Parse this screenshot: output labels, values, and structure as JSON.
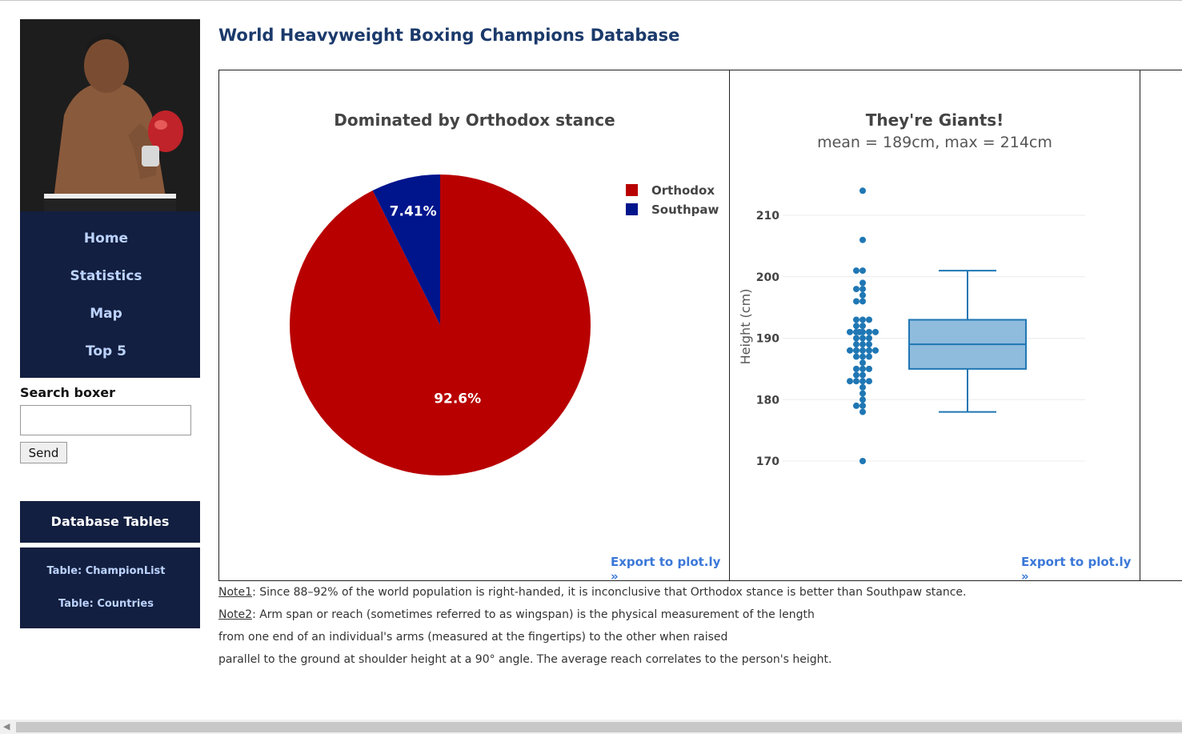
{
  "page": {
    "title": "World Heavyweight Boxing Champions Database"
  },
  "sidebar": {
    "nav": [
      "Home",
      "Statistics",
      "Map",
      "Top 5"
    ],
    "search": {
      "label": "Search boxer",
      "value": "",
      "button": "Send"
    },
    "db": {
      "header": "Database Tables",
      "links": [
        "Table: ChampionList",
        "Table: Countries"
      ]
    }
  },
  "colors": {
    "navy": "#131f40",
    "link": "#bcd3ff",
    "orthodox": "#b80000",
    "southpaw": "#00148c",
    "box": "#1f77b4"
  },
  "pie_chart": {
    "export": "Export to plot.ly »"
  },
  "box_chart": {
    "export": "Export to plot.ly »"
  },
  "chart_data": [
    {
      "type": "pie",
      "title": "Dominated by Orthodox stance",
      "labels": [
        "Orthodox",
        "Southpaw"
      ],
      "values": [
        92.59,
        7.41
      ],
      "text_labels": [
        "92.6%",
        "7.41%"
      ],
      "colors": [
        "#b80000",
        "#00148c"
      ],
      "legend": "top-right"
    },
    {
      "type": "box",
      "title": "They're Giants!",
      "subtitle": "mean = 189cm, max = 214cm",
      "ylabel": "Height (cm)",
      "yticks": [
        170,
        180,
        190,
        200,
        210
      ],
      "ylim": [
        160,
        215
      ],
      "box": {
        "min": 178,
        "q1": 185,
        "median": 189,
        "q3": 193,
        "max": 201
      },
      "points": [
        214,
        206,
        201,
        201,
        199,
        198,
        198,
        197,
        196,
        196,
        193,
        193,
        193,
        192,
        192,
        191,
        191,
        191,
        191,
        191,
        191,
        190,
        190,
        190,
        189,
        189,
        189,
        188,
        188,
        188,
        188,
        188,
        187,
        187,
        187,
        186,
        185,
        185,
        185,
        184,
        184,
        183,
        183,
        183,
        183,
        182,
        181,
        180,
        179,
        179,
        178,
        170
      ]
    }
  ],
  "notes": [
    {
      "tag": "Note1",
      "text": ": Since 88–92% of the world population is right-handed, it is inconclusive that Orthodox stance is better than Southpaw stance."
    },
    {
      "tag": "Note2",
      "text": ": Arm span or reach (sometimes referred to as wingspan) is the physical measurement of the length"
    },
    {
      "tag": "",
      "text": "from one end of an individual's arms (measured at the fingertips) to the other when raised"
    },
    {
      "tag": "",
      "text": "parallel to the ground at shoulder height at a 90° angle. The average reach correlates to the person's height."
    }
  ]
}
